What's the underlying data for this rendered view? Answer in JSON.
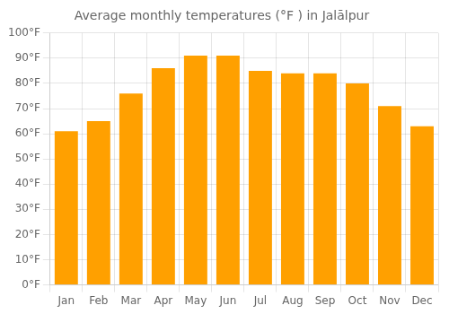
{
  "chart_data": {
    "type": "bar",
    "title": "Average monthly temperatures (°F ) in Jalālpur",
    "categories": [
      "Jan",
      "Feb",
      "Mar",
      "Apr",
      "May",
      "Jun",
      "Jul",
      "Aug",
      "Sep",
      "Oct",
      "Nov",
      "Dec"
    ],
    "values": [
      61,
      65,
      76,
      86,
      91,
      91,
      85,
      84,
      84,
      80,
      71,
      63
    ],
    "color": "#FFA000",
    "ylim": [
      0,
      100
    ],
    "yticks": [
      {
        "value": 0,
        "label": "0°F"
      },
      {
        "value": 10,
        "label": "10°F"
      },
      {
        "value": 20,
        "label": "20°F"
      },
      {
        "value": 30,
        "label": "30°F"
      },
      {
        "value": 40,
        "label": "40°F"
      },
      {
        "value": 50,
        "label": "50°F"
      },
      {
        "value": 60,
        "label": "60°F"
      },
      {
        "value": 70,
        "label": "70°F"
      },
      {
        "value": 80,
        "label": "80°F"
      },
      {
        "value": 90,
        "label": "90°F"
      },
      {
        "value": 100,
        "label": "100°F"
      }
    ],
    "grid": true
  }
}
